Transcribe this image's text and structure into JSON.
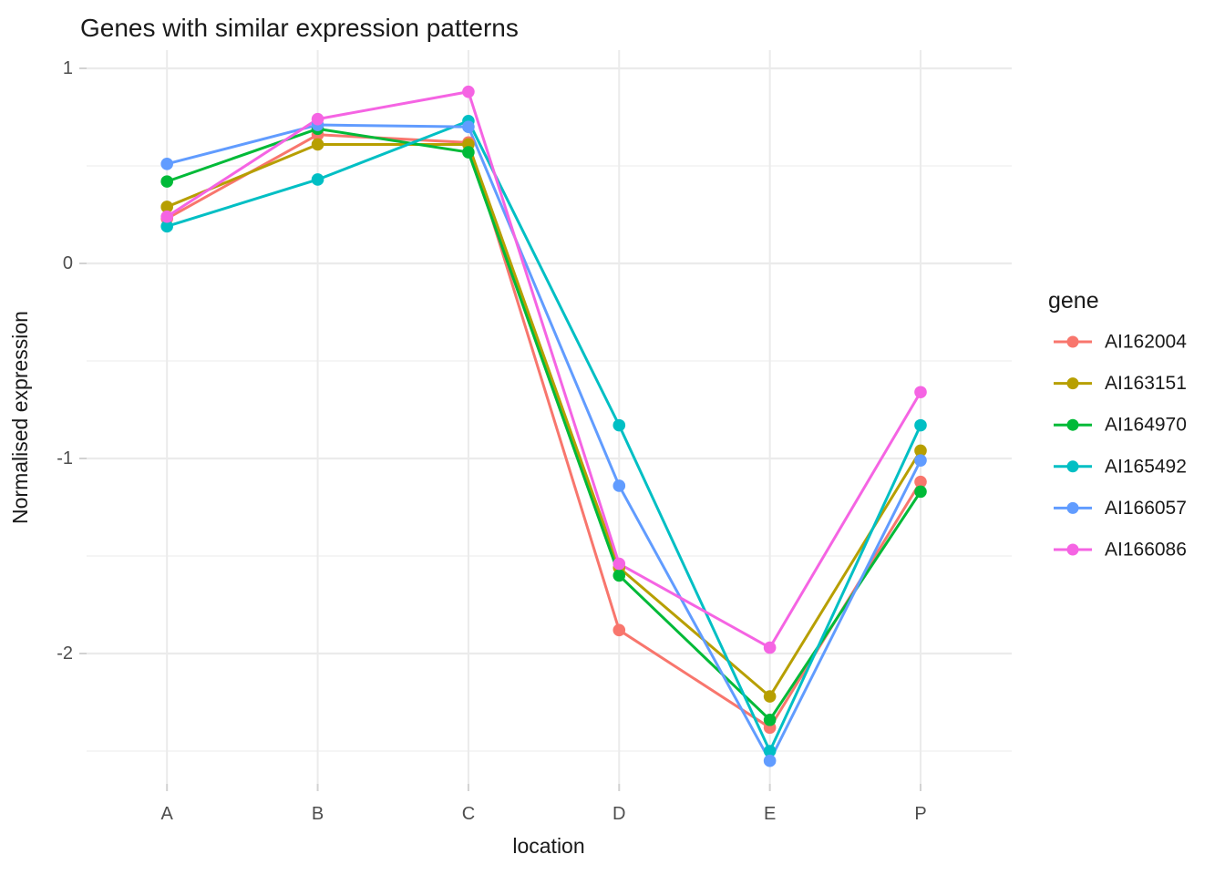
{
  "title": "Genes with similar expression patterns",
  "chart_data": {
    "type": "line",
    "title": "Genes with similar expression patterns",
    "xlabel": "location",
    "ylabel": "Normalised expression",
    "categories": [
      "A",
      "B",
      "C",
      "D",
      "E",
      "P"
    ],
    "yticks": [
      1,
      0,
      -1,
      -2
    ],
    "minor_yticks": [
      0.5,
      -0.5,
      -1.5,
      -2.5
    ],
    "ylim": [
      -2.67,
      1.09
    ],
    "grid": "horizontal major+minor, vertical at categories, light gray on white",
    "legend_title": "gene",
    "legend_position": "right",
    "series": [
      {
        "name": "AI162004",
        "color": "#F8766D",
        "values": [
          0.23,
          0.66,
          0.62,
          -1.88,
          -2.38,
          -1.12
        ]
      },
      {
        "name": "AI163151",
        "color": "#B79F00",
        "values": [
          0.29,
          0.61,
          0.61,
          -1.56,
          -2.22,
          -0.96
        ]
      },
      {
        "name": "AI164970",
        "color": "#00BA38",
        "values": [
          0.42,
          0.69,
          0.57,
          -1.6,
          -2.34,
          -1.17
        ]
      },
      {
        "name": "AI165492",
        "color": "#00BFC4",
        "values": [
          0.19,
          0.43,
          0.73,
          -0.83,
          -2.5,
          -0.83
        ]
      },
      {
        "name": "AI166057",
        "color": "#619CFF",
        "values": [
          0.51,
          0.71,
          0.7,
          -1.14,
          -2.55,
          -1.01
        ]
      },
      {
        "name": "AI166086",
        "color": "#F564E3",
        "values": [
          0.24,
          0.74,
          0.88,
          -1.54,
          -1.97,
          -0.66
        ]
      }
    ]
  },
  "colors": {
    "background": "#FFFFFF",
    "grid": "#EBEBEB",
    "tick_mark": "#D2D2D2",
    "tick_label": "#4D4D4D",
    "text": "#1A1A1A"
  }
}
